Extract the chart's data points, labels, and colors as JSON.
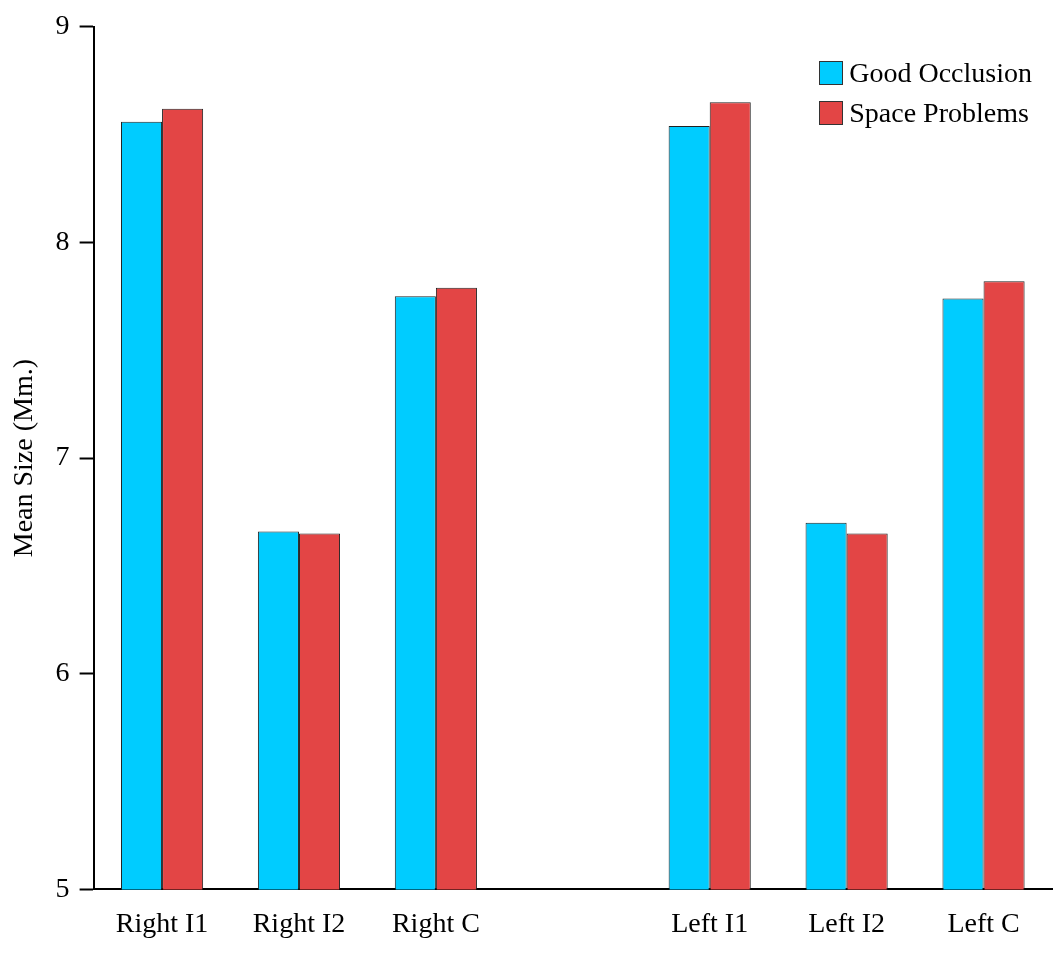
{
  "chart_data": {
    "type": "bar",
    "ylabel": "Mean Size (Mm.)",
    "categories": [
      "Right I1",
      "Right I2",
      "Right C",
      null,
      "Left I1",
      "Left I2",
      "Left C"
    ],
    "series": [
      {
        "name": "Good Occlusion",
        "color": "#00ccff",
        "values": [
          8.56,
          6.66,
          7.75,
          null,
          8.54,
          6.7,
          7.74
        ]
      },
      {
        "name": "Space Problems",
        "color": "#e34545",
        "values": [
          8.62,
          6.65,
          7.79,
          null,
          8.65,
          6.65,
          7.82
        ]
      }
    ],
    "ylim": [
      5,
      9
    ],
    "yticks": [
      5,
      6,
      7,
      8,
      9
    ],
    "grid": false,
    "legend": "top right"
  }
}
